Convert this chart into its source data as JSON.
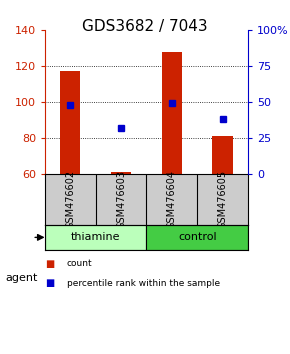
{
  "title": "GDS3682 / 7043",
  "samples": [
    "GSM476602",
    "GSM476603",
    "GSM476604",
    "GSM476605"
  ],
  "counts": [
    117,
    61,
    128,
    81
  ],
  "percentiles": [
    48,
    32,
    49,
    38
  ],
  "ylim_left": [
    60,
    140
  ],
  "ylim_right": [
    0,
    100
  ],
  "yticks_left": [
    60,
    80,
    100,
    120,
    140
  ],
  "yticks_right": [
    0,
    25,
    50,
    75,
    100
  ],
  "ytick_labels_right": [
    "0",
    "25",
    "50",
    "75",
    "100%"
  ],
  "grid_values": [
    80,
    100,
    120
  ],
  "bar_color": "#cc2200",
  "marker_color": "#0000cc",
  "bar_width": 0.4,
  "groups": [
    {
      "label": "thiamine",
      "indices": [
        0,
        1
      ],
      "color": "#bbffbb"
    },
    {
      "label": "control",
      "indices": [
        2,
        3
      ],
      "color": "#44cc44"
    }
  ],
  "agent_label": "agent",
  "legend_items": [
    {
      "label": "count",
      "color": "#cc2200"
    },
    {
      "label": "percentile rank within the sample",
      "color": "#0000cc"
    }
  ],
  "title_fontsize": 11,
  "tick_fontsize": 8,
  "label_fontsize": 8,
  "sample_label_fontsize": 7,
  "bg_plot": "#ffffff",
  "bg_sample": "#cccccc",
  "left_tick_color": "#cc2200",
  "right_tick_color": "#0000cc"
}
